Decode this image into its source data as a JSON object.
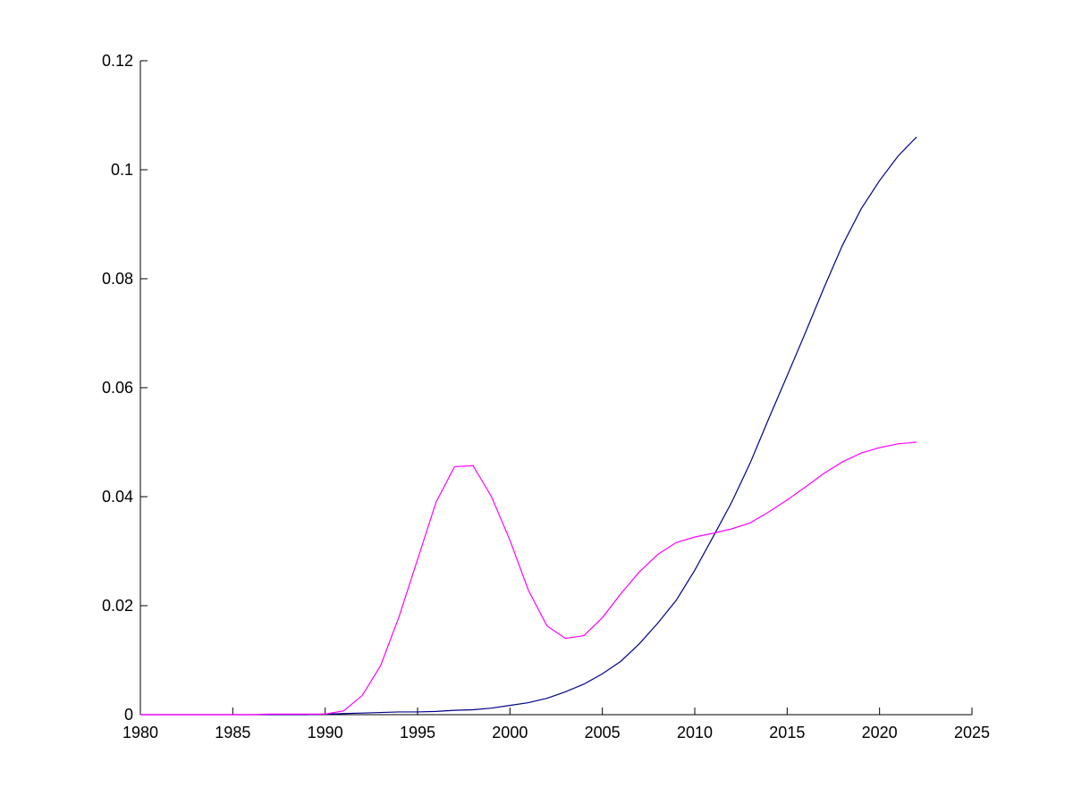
{
  "chart_data": {
    "type": "line",
    "title": "",
    "xlabel": "",
    "ylabel": "",
    "xlim": [
      1980,
      2025
    ],
    "ylim": [
      0,
      0.12
    ],
    "x_ticks": [
      "1980",
      "1985",
      "1990",
      "1995",
      "2000",
      "2005",
      "2010",
      "2015",
      "2020",
      "2025"
    ],
    "y_ticks": [
      "0",
      "0.02",
      "0.04",
      "0.06",
      "0.08",
      "0.1",
      "0.12"
    ],
    "grid": false,
    "legend": "none",
    "x": [
      1980,
      1981,
      1982,
      1983,
      1984,
      1985,
      1986,
      1987,
      1988,
      1989,
      1990,
      1991,
      1992,
      1993,
      1994,
      1995,
      1996,
      1997,
      1998,
      1999,
      2000,
      2001,
      2002,
      2003,
      2004,
      2005,
      2006,
      2007,
      2008,
      2009,
      2010,
      2011,
      2012,
      2013,
      2014,
      2015,
      2016,
      2017,
      2018,
      2019,
      2020,
      2021,
      2022
    ],
    "series": [
      {
        "color": "#00008b",
        "values": [
          0,
          0,
          0,
          0,
          0,
          0,
          0,
          0,
          0,
          0,
          0.0001,
          0.0002,
          0.0003,
          0.0004,
          0.0005,
          0.0005,
          0.0006,
          0.0008,
          0.0009,
          0.0012,
          0.0017,
          0.0022,
          0.003,
          0.0042,
          0.0056,
          0.0075,
          0.0098,
          0.013,
          0.0168,
          0.021,
          0.0265,
          0.0327,
          0.039,
          0.0462,
          0.0543,
          0.0622,
          0.0702,
          0.0784,
          0.0862,
          0.0928,
          0.098,
          0.1025,
          0.106
        ]
      },
      {
        "color": "#ff00ff",
        "values": [
          0,
          0,
          0,
          0,
          0,
          0,
          0,
          0.0001,
          0.0001,
          0.0001,
          0.0001,
          0.0007,
          0.0035,
          0.009,
          0.018,
          0.0285,
          0.039,
          0.0455,
          0.0457,
          0.04,
          0.032,
          0.0228,
          0.0163,
          0.014,
          0.0145,
          0.0178,
          0.0222,
          0.0262,
          0.0294,
          0.0316,
          0.0326,
          0.0333,
          0.0341,
          0.0352,
          0.0372,
          0.0394,
          0.0418,
          0.0443,
          0.0464,
          0.048,
          0.049,
          0.0497,
          0.05
        ]
      }
    ]
  }
}
